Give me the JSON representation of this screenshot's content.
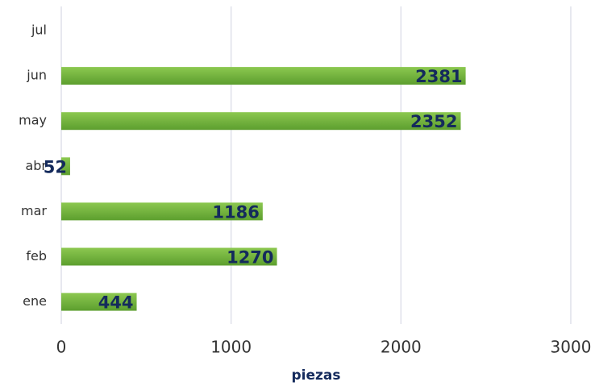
{
  "chart_data": {
    "type": "bar",
    "orientation": "horizontal",
    "x_label": "piezas",
    "categories": [
      "ene",
      "feb",
      "mar",
      "abr",
      "may",
      "jun",
      "jul"
    ],
    "values": [
      444,
      1270,
      1186,
      52,
      2352,
      2381,
      null
    ],
    "color": "#6fb23a",
    "xlim": [
      0,
      3000
    ],
    "xticks": [
      0,
      1000,
      2000,
      3000
    ],
    "grid": true
  }
}
